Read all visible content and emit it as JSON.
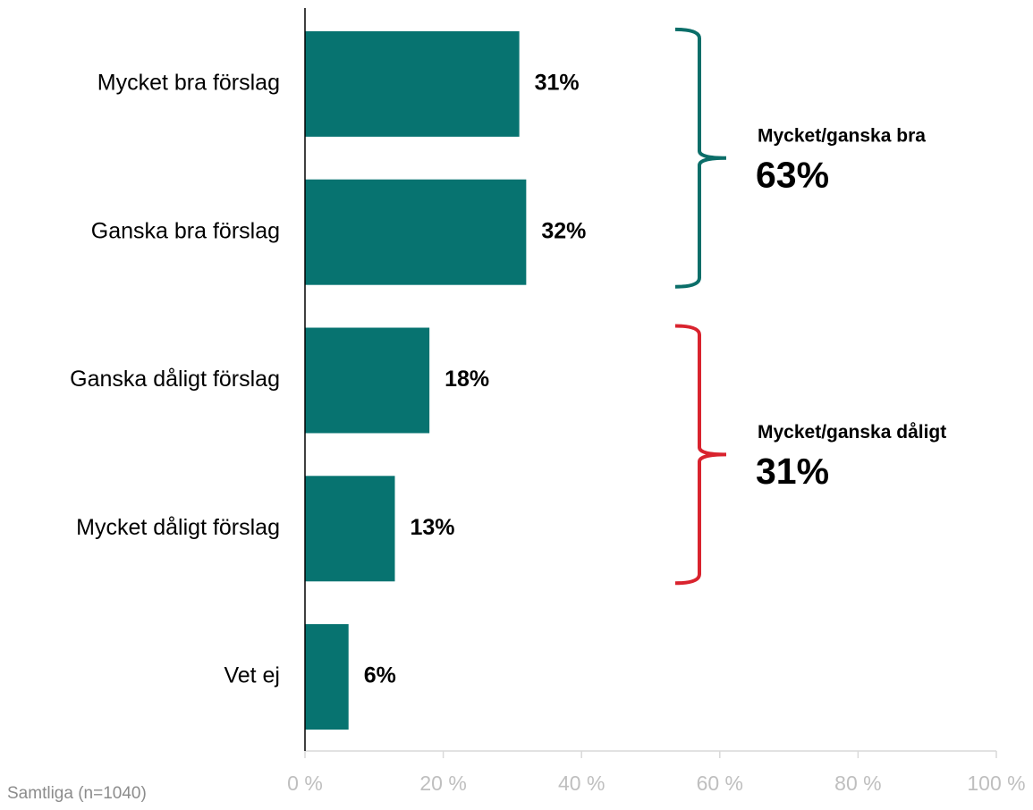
{
  "chart_data": {
    "type": "barh",
    "categories": [
      "Mycket bra förslag",
      "Ganska bra förslag",
      "Ganska dåligt förslag",
      "Mycket dåligt förslag",
      "Vet ej"
    ],
    "values": [
      31,
      32,
      18,
      13,
      6.3
    ],
    "value_labels": [
      "31%",
      "32%",
      "18%",
      "13%",
      "6%"
    ],
    "color": "#077370",
    "xlim": [
      0,
      100
    ],
    "xticks": [
      {
        "value": 0,
        "label": "0 %"
      },
      {
        "value": 20,
        "label": "20 %"
      },
      {
        "value": 40,
        "label": "40 %"
      },
      {
        "value": 60,
        "label": "60 %"
      },
      {
        "value": 80,
        "label": "80 %"
      },
      {
        "value": 100,
        "label": "100 %"
      }
    ],
    "groups": [
      {
        "label": "Mycket/ganska bra",
        "value": 63,
        "value_label": "63%",
        "color": "#0b6e69"
      },
      {
        "label": "Mycket/ganska dåligt",
        "value": 31,
        "value_label": "31%",
        "color": "#d9232e"
      }
    ],
    "footnote": "Samtliga (n=1040)"
  }
}
